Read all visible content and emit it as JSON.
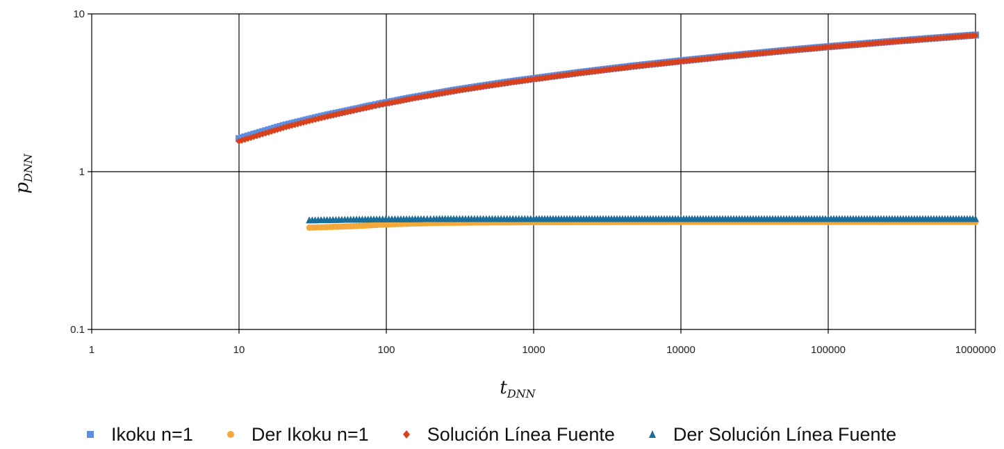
{
  "chart_data": {
    "type": "scatter",
    "title": "",
    "xlabel": "t",
    "xlabel_sub": "DNN",
    "ylabel": "p",
    "ylabel_sub": "DNN",
    "x_scale": "log",
    "y_scale": "log",
    "xlim": [
      1,
      1000000
    ],
    "ylim": [
      0.1,
      10
    ],
    "x_ticks": [
      "1",
      "10",
      "100",
      "1000",
      "10000",
      "100000",
      "1000000"
    ],
    "y_ticks": [
      "0.1",
      "1",
      "10"
    ],
    "grid": true,
    "legend_position": "bottom",
    "series": [
      {
        "name": "Ikoku n=1",
        "marker": "square",
        "color": "#5b8fe3",
        "points": [
          [
            10,
            1.62
          ],
          [
            20,
            1.96
          ],
          [
            30,
            2.15
          ],
          [
            40,
            2.29
          ],
          [
            50,
            2.39
          ],
          [
            60,
            2.48
          ],
          [
            70,
            2.56
          ],
          [
            80,
            2.63
          ],
          [
            90,
            2.69
          ],
          [
            100,
            2.74
          ],
          [
            120,
            2.83
          ],
          [
            150,
            2.95
          ],
          [
            200,
            3.09
          ],
          [
            300,
            3.3
          ],
          [
            500,
            3.55
          ],
          [
            700,
            3.72
          ],
          [
            1000,
            3.89
          ],
          [
            2000,
            4.24
          ],
          [
            3000,
            4.44
          ],
          [
            5000,
            4.7
          ],
          [
            7000,
            4.86
          ],
          [
            10000,
            5.04
          ],
          [
            20000,
            5.39
          ],
          [
            30000,
            5.59
          ],
          [
            50000,
            5.85
          ],
          [
            70000,
            6.02
          ],
          [
            100000,
            6.2
          ],
          [
            200000,
            6.54
          ],
          [
            300000,
            6.75
          ],
          [
            500000,
            7.0
          ],
          [
            700000,
            7.17
          ],
          [
            1000000,
            7.35
          ]
        ]
      },
      {
        "name": "Der Ikoku n=1",
        "marker": "circle",
        "color": "#f2a93b",
        "points": [
          [
            30,
            0.46
          ],
          [
            60,
            0.47
          ],
          [
            90,
            0.48
          ],
          [
            120,
            0.485
          ],
          [
            150,
            0.488
          ],
          [
            180,
            0.49
          ],
          [
            210,
            0.492
          ],
          [
            240,
            0.493
          ],
          [
            300,
            0.494
          ],
          [
            500,
            0.496
          ],
          [
            1000,
            0.498
          ],
          [
            10000,
            0.5
          ],
          [
            100000,
            0.5
          ],
          [
            1000000,
            0.5
          ]
        ]
      },
      {
        "name": "Solución Línea Fuente",
        "marker": "diamond",
        "color": "#d9401c",
        "points": [
          [
            10,
            1.56
          ],
          [
            20,
            1.9
          ],
          [
            30,
            2.1
          ],
          [
            40,
            2.24
          ],
          [
            50,
            2.35
          ],
          [
            60,
            2.44
          ],
          [
            70,
            2.52
          ],
          [
            80,
            2.59
          ],
          [
            90,
            2.65
          ],
          [
            100,
            2.7
          ],
          [
            120,
            2.79
          ],
          [
            150,
            2.91
          ],
          [
            200,
            3.05
          ],
          [
            300,
            3.26
          ],
          [
            500,
            3.51
          ],
          [
            700,
            3.68
          ],
          [
            1000,
            3.85
          ],
          [
            2000,
            4.2
          ],
          [
            3000,
            4.4
          ],
          [
            5000,
            4.66
          ],
          [
            7000,
            4.82
          ],
          [
            10000,
            5.0
          ],
          [
            20000,
            5.35
          ],
          [
            30000,
            5.55
          ],
          [
            50000,
            5.81
          ],
          [
            70000,
            5.98
          ],
          [
            100000,
            6.16
          ],
          [
            200000,
            6.5
          ],
          [
            300000,
            6.71
          ],
          [
            500000,
            6.96
          ],
          [
            700000,
            7.13
          ],
          [
            1000000,
            7.31
          ]
        ]
      },
      {
        "name": "Der Solución Línea Fuente",
        "marker": "triangle",
        "color": "#1a6e9a",
        "points": [
          [
            30,
            0.49
          ],
          [
            60,
            0.495
          ],
          [
            90,
            0.497
          ],
          [
            120,
            0.498
          ],
          [
            150,
            0.498
          ],
          [
            180,
            0.499
          ],
          [
            210,
            0.499
          ],
          [
            240,
            0.5
          ],
          [
            300,
            0.5
          ],
          [
            500,
            0.5
          ],
          [
            1000,
            0.5
          ],
          [
            10000,
            0.5
          ],
          [
            100000,
            0.5
          ],
          [
            1000000,
            0.5
          ]
        ]
      }
    ]
  }
}
